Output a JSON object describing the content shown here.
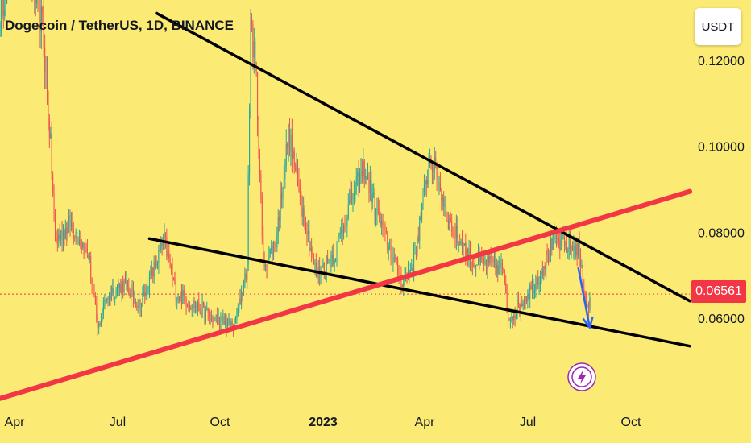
{
  "title": "Dogecoin / TetherUS, 1D, BINANCE",
  "currency": "USDT",
  "current_price_label": "0.06561",
  "colors": {
    "background": "#fbea74",
    "up_candle": "#26a69a",
    "down_candle": "#ef5350",
    "trendline": "#000000",
    "support_line": "#f23645",
    "arrow": "#2962ff",
    "price_tag": "#f23645",
    "lightning_badge": "#9c27b0"
  },
  "icons": [
    "lightning-icon",
    "down-arrow-icon"
  ],
  "chart_data": {
    "type": "candlestick",
    "title": "Dogecoin / TetherUS, 1D, BINANCE",
    "y_unit": "USDT",
    "ylim": [
      0.04,
      0.135
    ],
    "y_ticks": [
      "0.06000",
      "0.08000",
      "0.10000",
      "0.12000"
    ],
    "x_ticks": [
      "Apr",
      "Jul",
      "Oct",
      "2023",
      "Apr",
      "Jul",
      "Oct"
    ],
    "x_range": [
      "2022-03-25",
      "2023-11-15"
    ],
    "current_price": 0.06561,
    "price_line": {
      "value": 0.06561,
      "style": "dotted"
    },
    "candle_anchors": [
      [
        "2022-03-25",
        0.13
      ],
      [
        "2022-04-05",
        0.145
      ],
      [
        "2022-04-20",
        0.14
      ],
      [
        "2022-05-01",
        0.128
      ],
      [
        "2022-05-08",
        0.1
      ],
      [
        "2022-05-12",
        0.078
      ],
      [
        "2022-05-25",
        0.082
      ],
      [
        "2022-06-10",
        0.075
      ],
      [
        "2022-06-18",
        0.057
      ],
      [
        "2022-06-25",
        0.065
      ],
      [
        "2022-07-10",
        0.068
      ],
      [
        "2022-07-25",
        0.063
      ],
      [
        "2022-08-15",
        0.078
      ],
      [
        "2022-08-25",
        0.066
      ],
      [
        "2022-09-10",
        0.063
      ],
      [
        "2022-09-25",
        0.06
      ],
      [
        "2022-10-15",
        0.058
      ],
      [
        "2022-10-26",
        0.072
      ],
      [
        "2022-10-29",
        0.13
      ],
      [
        "2022-11-03",
        0.115
      ],
      [
        "2022-11-09",
        0.072
      ],
      [
        "2022-11-20",
        0.078
      ],
      [
        "2022-12-01",
        0.103
      ],
      [
        "2022-12-10",
        0.09
      ],
      [
        "2022-12-25",
        0.07
      ],
      [
        "2023-01-10",
        0.075
      ],
      [
        "2023-01-25",
        0.088
      ],
      [
        "2023-02-05",
        0.095
      ],
      [
        "2023-02-15",
        0.085
      ],
      [
        "2023-03-10",
        0.068
      ],
      [
        "2023-03-20",
        0.073
      ],
      [
        "2023-04-03",
        0.098
      ],
      [
        "2023-04-10",
        0.092
      ],
      [
        "2023-04-20",
        0.082
      ],
      [
        "2023-05-10",
        0.073
      ],
      [
        "2023-06-05",
        0.072
      ],
      [
        "2023-06-10",
        0.06
      ],
      [
        "2023-06-20",
        0.063
      ],
      [
        "2023-07-05",
        0.069
      ],
      [
        "2023-07-20",
        0.078
      ],
      [
        "2023-07-30",
        0.077
      ],
      [
        "2023-08-10",
        0.076
      ],
      [
        "2023-08-17",
        0.063
      ],
      [
        "2023-08-21",
        0.0635
      ]
    ],
    "drawings": [
      {
        "type": "trendline",
        "color": "#000000",
        "from": [
          "2022-08-08",
          0.131
        ],
        "to": [
          "2023-11-15",
          0.064
        ]
      },
      {
        "type": "trendline",
        "color": "#000000",
        "from": [
          "2022-08-02",
          0.0785
        ],
        "to": [
          "2023-11-15",
          0.0535
        ]
      },
      {
        "type": "trendline",
        "color": "#f23645",
        "from": [
          "2022-03-25",
          0.0413
        ],
        "to": [
          "2023-11-15",
          0.0895
        ]
      },
      {
        "type": "arrow",
        "color": "#2962ff",
        "from": [
          "2023-08-10",
          0.0718
        ],
        "to": [
          "2023-08-20",
          0.0578
        ]
      }
    ]
  }
}
